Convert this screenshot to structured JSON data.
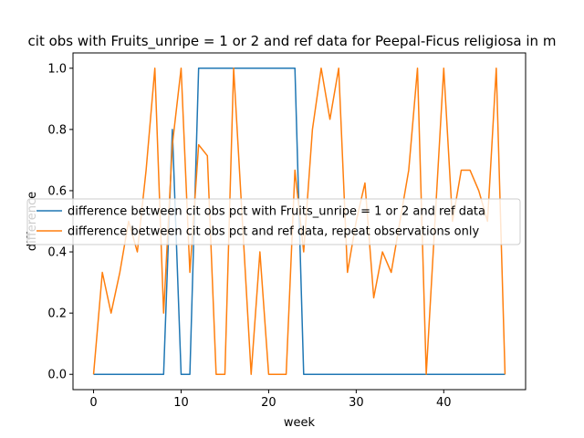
{
  "chart_data": {
    "type": "line",
    "title": "cit obs with Fruits_unripe = 1 or 2 and ref data for Peepal-Ficus religiosa in m",
    "xlabel": "week",
    "ylabel": "difference",
    "xlim": [
      -2.35,
      49.35
    ],
    "ylim": [
      -0.05,
      1.05
    ],
    "xticks": [
      0,
      10,
      20,
      30,
      40
    ],
    "yticks": [
      0.0,
      0.2,
      0.4,
      0.6,
      0.8,
      1.0
    ],
    "xtick_labels": [
      "0",
      "10",
      "20",
      "30",
      "40"
    ],
    "ytick_labels": [
      "0.0",
      "0.2",
      "0.4",
      "0.6",
      "0.8",
      "1.0"
    ],
    "grid": false,
    "legend_position": "center-right",
    "series": [
      {
        "name": "difference between cit obs pct with Fruits_unripe = 1 or 2 and ref data",
        "color": "#1f77b4",
        "x": [
          0,
          1,
          2,
          3,
          4,
          5,
          6,
          7,
          8,
          9,
          10,
          11,
          12,
          13,
          14,
          15,
          16,
          17,
          18,
          19,
          20,
          21,
          22,
          23,
          24,
          25,
          26,
          27,
          28,
          29,
          30,
          31,
          32,
          33,
          34,
          35,
          36,
          37,
          38,
          39,
          40,
          41,
          42,
          43,
          44,
          45,
          46,
          47
        ],
        "y": [
          0,
          0,
          0,
          0,
          0,
          0,
          0,
          0,
          0,
          0.8,
          0,
          0,
          1,
          1,
          1,
          1,
          1,
          1,
          1,
          1,
          1,
          1,
          1,
          1,
          0,
          0,
          0,
          0,
          0,
          0,
          0,
          0,
          0,
          0,
          0,
          0,
          0,
          0,
          0,
          0,
          0,
          0,
          0,
          0,
          0,
          0,
          0,
          0
        ]
      },
      {
        "name": "difference between cit obs pct and ref data, repeat observations only",
        "color": "#ff7f0e",
        "x": [
          0,
          1,
          2,
          3,
          4,
          5,
          6,
          7,
          8,
          9,
          10,
          11,
          12,
          13,
          14,
          15,
          16,
          17,
          18,
          19,
          20,
          21,
          22,
          23,
          24,
          25,
          26,
          27,
          28,
          29,
          30,
          31,
          32,
          33,
          34,
          35,
          36,
          37,
          38,
          39,
          40,
          41,
          42,
          43,
          44,
          45,
          46,
          47
        ],
        "y": [
          0,
          0.333,
          0.2,
          0.333,
          0.5,
          0.4,
          0.667,
          1,
          0.2,
          0.75,
          1,
          0.333,
          0.75,
          0.714,
          0,
          0,
          1,
          0.5,
          0,
          0.4,
          0,
          0,
          0,
          0.667,
          0.4,
          0.8,
          1,
          0.833,
          1,
          0.333,
          0.5,
          0.625,
          0.25,
          0.4,
          0.333,
          0.5,
          0.667,
          1,
          0,
          0.5,
          1,
          0.5,
          0.667,
          0.667,
          0.6,
          0.5,
          1,
          0
        ]
      }
    ]
  }
}
